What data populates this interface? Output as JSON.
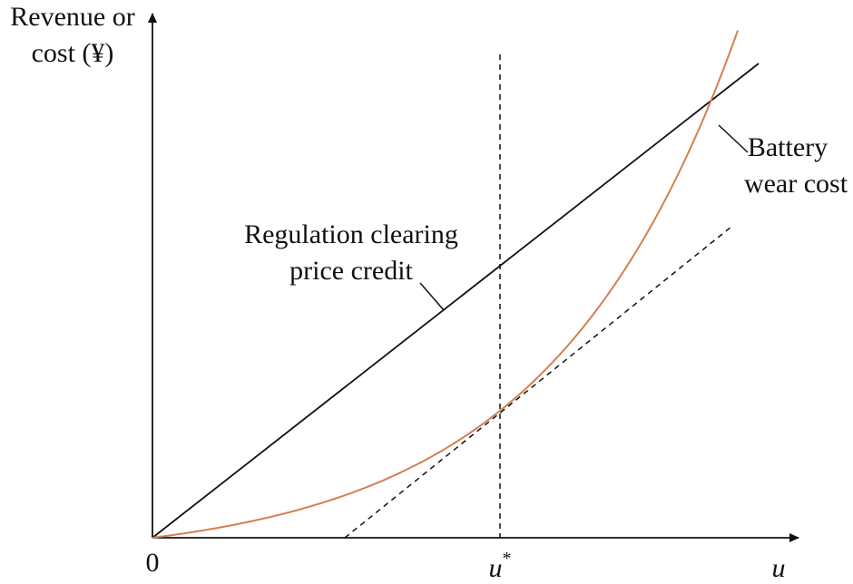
{
  "axes": {
    "y_label": [
      "Revenue or",
      "cost (¥)"
    ],
    "origin": "0",
    "x_mark": "u",
    "x_mark_sup": "*",
    "x_label": "u"
  },
  "annotations": {
    "line": [
      "Regulation clearing",
      "price credit"
    ],
    "curve": [
      "Battery",
      "wear cost"
    ]
  }
}
